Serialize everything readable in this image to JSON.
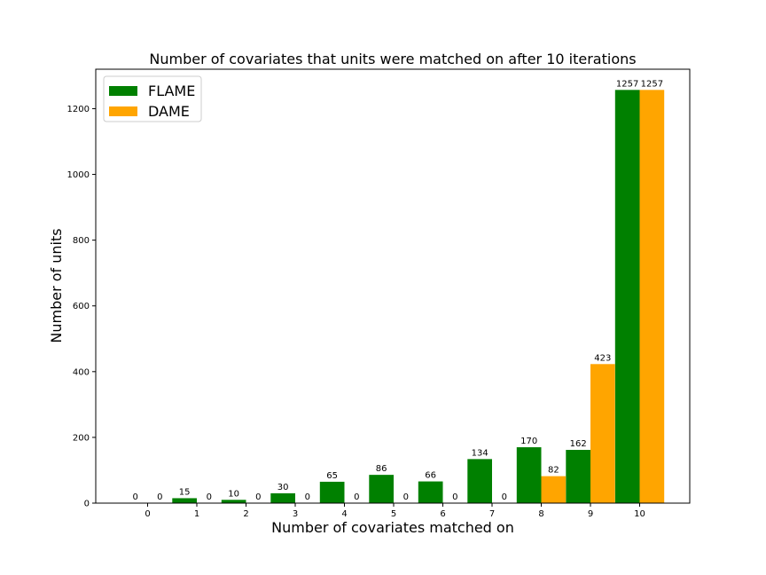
{
  "chart_data": {
    "type": "bar",
    "title": "Number of covariates that units were matched on after 10 iterations",
    "xlabel": "Number of covariates matched on",
    "ylabel": "Number of units",
    "categories": [
      "0",
      "1",
      "2",
      "3",
      "4",
      "5",
      "6",
      "7",
      "8",
      "9",
      "10"
    ],
    "series": [
      {
        "name": "FLAME",
        "color": "#008000",
        "values": [
          0,
          15,
          10,
          30,
          65,
          86,
          66,
          134,
          170,
          162,
          1257
        ]
      },
      {
        "name": "DAME",
        "color": "#ffa500",
        "values": [
          0,
          0,
          0,
          0,
          0,
          0,
          0,
          0,
          82,
          423,
          1257
        ]
      }
    ],
    "ylim": [
      0,
      1320
    ],
    "yticks": [
      0,
      200,
      400,
      600,
      800,
      1000,
      1200
    ],
    "grid": false,
    "legend_position": "top-left"
  }
}
